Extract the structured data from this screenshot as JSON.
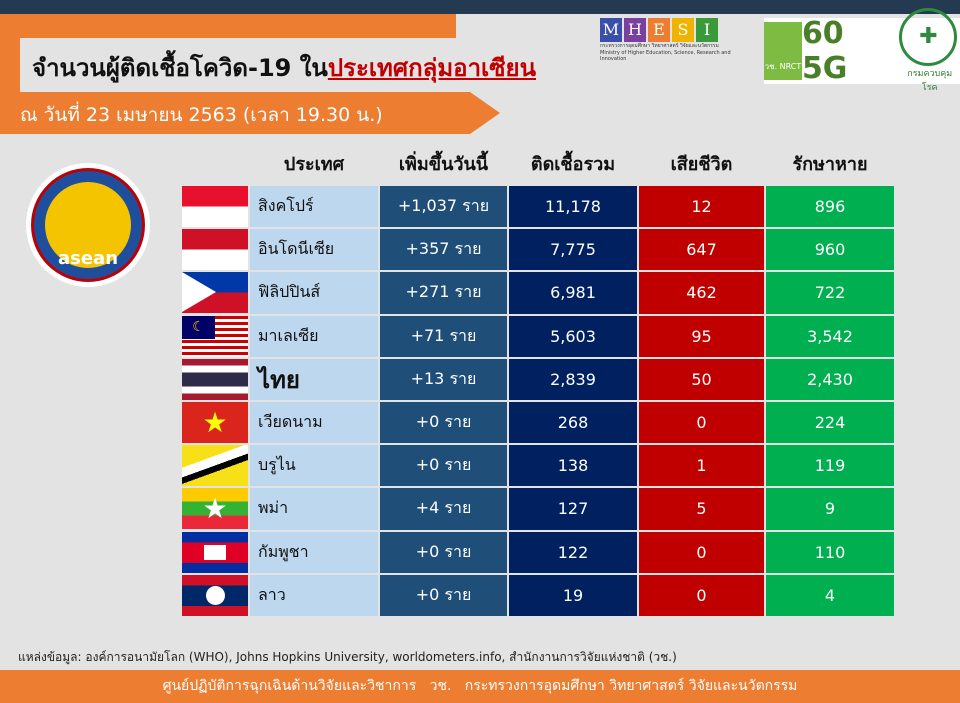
{
  "header": {
    "title_prefix": "จำนวนผู้ติดเชื้อโควิด-19 ใน",
    "title_highlight": "ประเทศกลุ่มอาเซียน",
    "date": "ณ วันที่ 23 เมษายน 2563 (เวลา 19.30 น.)"
  },
  "logos": {
    "mhesi_letters": [
      "M",
      "H",
      "E",
      "S",
      "I"
    ],
    "mhesi_colors": [
      "#3b4fa8",
      "#7b3fa0",
      "#ed7d31",
      "#f0b400",
      "#3a9a3a"
    ],
    "mhesi_caption_th": "กระทรวงการอุดมศึกษา วิทยาศาสตร์ วิจัยและนวัตกรรม",
    "mhesi_caption_en": "Ministry of Higher Education, Science, Research and Innovation",
    "nrct": "วช. NRCT",
    "sixty": "60 5G",
    "ddc_caption": "กรมควบคุมโรค"
  },
  "asean_logo": "asean",
  "table": {
    "headers": [
      "ประเทศ",
      "เพิ่มขึ้นวันนี้",
      "ติดเชื้อรวม",
      "เสียชีวิต",
      "รักษาหาย"
    ],
    "rows": [
      {
        "country": "สิงคโปร์",
        "flag": "singapore",
        "added": "+1,037 ราย",
        "total": "11,178",
        "deaths": "12",
        "recovered": "896"
      },
      {
        "country": "อินโดนีเซีย",
        "flag": "indonesia",
        "added": "+357 ราย",
        "total": "7,775",
        "deaths": "647",
        "recovered": "960"
      },
      {
        "country": "ฟิลิปปินส์",
        "flag": "philippines",
        "added": "+271 ราย",
        "total": "6,981",
        "deaths": "462",
        "recovered": "722"
      },
      {
        "country": "มาเลเซีย",
        "flag": "malaysia",
        "added": "+71 ราย",
        "total": "5,603",
        "deaths": "95",
        "recovered": "3,542"
      },
      {
        "country": "ไทย",
        "flag": "thailand",
        "added": "+13 ราย",
        "total": "2,839",
        "deaths": "50",
        "recovered": "2,430"
      },
      {
        "country": "เวียดนาม",
        "flag": "vietnam",
        "added": "+0 ราย",
        "total": "268",
        "deaths": "0",
        "recovered": "224"
      },
      {
        "country": "บรูไน",
        "flag": "brunei",
        "added": "+0 ราย",
        "total": "138",
        "deaths": "1",
        "recovered": "119"
      },
      {
        "country": "พม่า",
        "flag": "myanmar",
        "added": "+4 ราย",
        "total": "127",
        "deaths": "5",
        "recovered": "9"
      },
      {
        "country": "กัมพูชา",
        "flag": "cambodia",
        "added": "+0 ราย",
        "total": "122",
        "deaths": "0",
        "recovered": "110"
      },
      {
        "country": "ลาว",
        "flag": "laos",
        "added": "+0 ราย",
        "total": "19",
        "deaths": "0",
        "recovered": "4"
      }
    ]
  },
  "source": "แหล่งข้อมูล: องค์การอนามัยโลก (WHO), Johns Hopkins University, worldometers.info, สำนักงานการวิจัยแห่งชาติ (วช.)",
  "footer": "ศูนย์ปฏิบัติการฉุกเฉินด้านวิจัยและวิชาการ   วช.   กระทรวงการอุดมศึกษา วิทยาศาสตร์ วิจัยและนวัตกรรม"
}
